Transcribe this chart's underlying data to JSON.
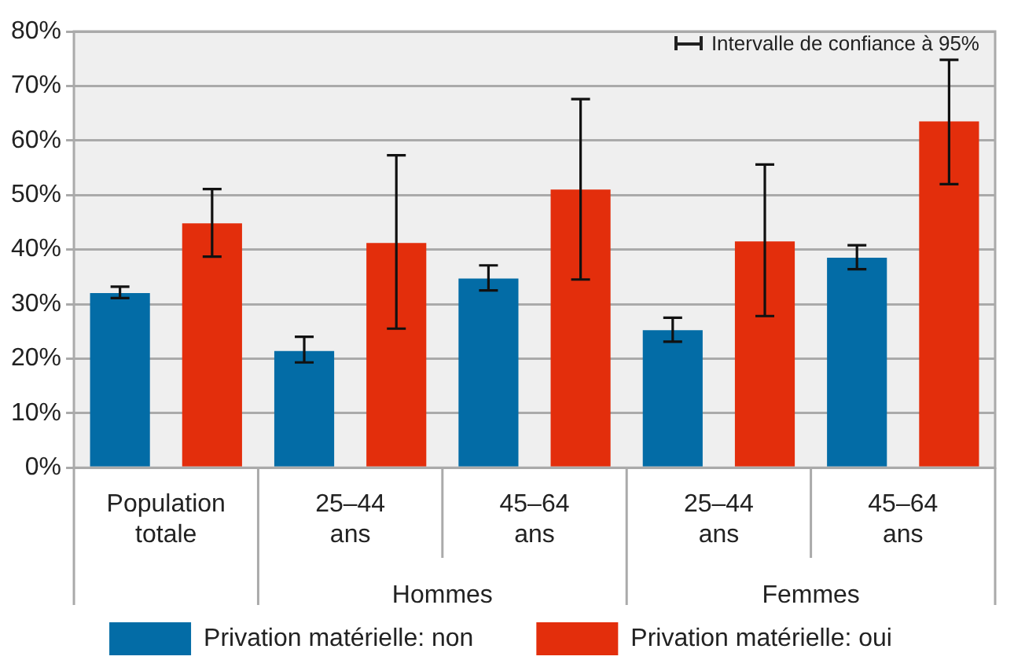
{
  "chart_data": {
    "type": "bar",
    "categories": [
      "Population totale",
      "25–44 ans",
      "45–64 ans",
      "25–44 ans",
      "45–64 ans"
    ],
    "series": [
      {
        "name": "Privation matérielle: non",
        "color": "#036ca6",
        "values": [
          32.0,
          21.4,
          34.7,
          25.2,
          38.5
        ],
        "errors": [
          [
            31.1,
            33.2
          ],
          [
            19.3,
            24.0
          ],
          [
            32.5,
            37.1
          ],
          [
            23.1,
            27.5
          ],
          [
            36.4,
            40.8
          ]
        ]
      },
      {
        "name": "Privation matérielle: oui",
        "color": "#e32e0c",
        "values": [
          44.8,
          41.2,
          51.0,
          41.5,
          63.5
        ],
        "errors": [
          [
            38.7,
            51.1
          ],
          [
            25.5,
            57.3
          ],
          [
            34.5,
            67.6
          ],
          [
            27.8,
            55.6
          ],
          [
            52.0,
            74.8
          ]
        ]
      }
    ],
    "ylim": [
      0,
      80
    ],
    "yticks": [
      {
        "value": 0,
        "label": "0%"
      },
      {
        "value": 10,
        "label": "10%"
      },
      {
        "value": 20,
        "label": "20%"
      },
      {
        "value": 30,
        "label": "30%"
      },
      {
        "value": 40,
        "label": "40%"
      },
      {
        "value": 50,
        "label": "50%"
      },
      {
        "value": 60,
        "label": "60%"
      },
      {
        "value": 70,
        "label": "70%"
      },
      {
        "value": 80,
        "label": "80%"
      }
    ],
    "grid": "y",
    "legend": "bottom",
    "annotations": [
      "Hommes",
      "Femmes",
      "Intervalle de confiance à 95%"
    ]
  }
}
